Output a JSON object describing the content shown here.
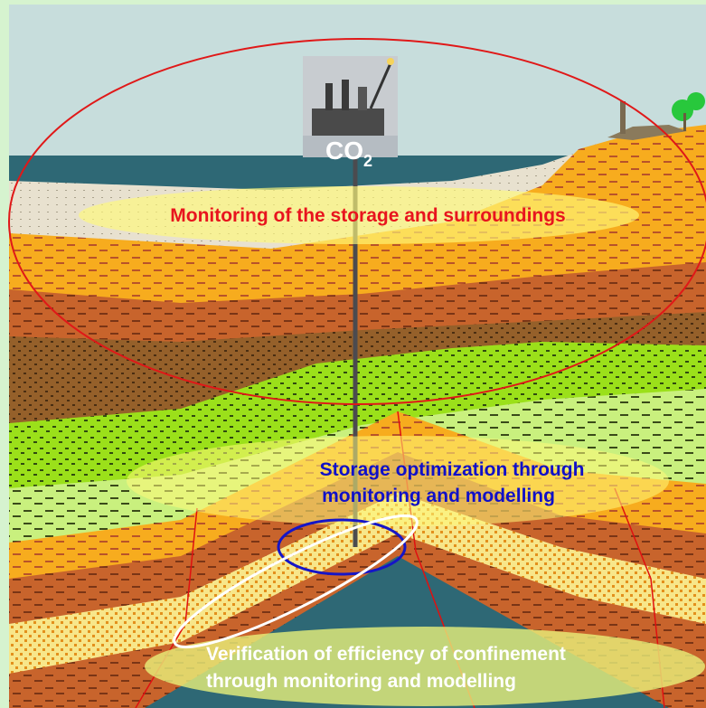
{
  "diagram": {
    "platform": {
      "label": {
        "main": "CO",
        "subscript": "2"
      }
    },
    "zones": [
      {
        "label": [
          "Monitoring of the storage and surroundings"
        ]
      },
      {
        "label": [
          "Storage optimization through",
          "monitoring and modelling"
        ]
      },
      {
        "label": [
          "Verification of efficiency of confinement",
          "through monitoring and modelling"
        ]
      }
    ]
  }
}
